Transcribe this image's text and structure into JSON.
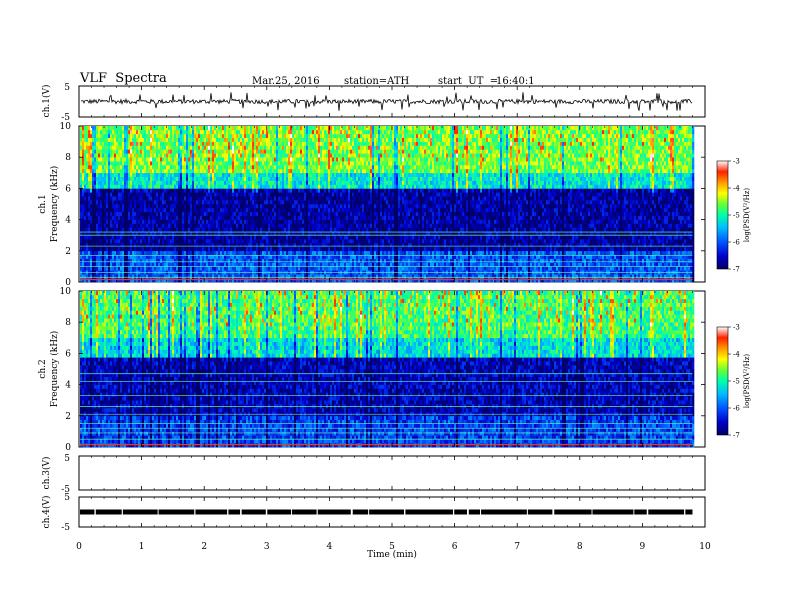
{
  "header": {
    "title": "VLF  Spectra",
    "date": "Mar.25, 2016",
    "station": "station=ATH",
    "start_label": "start  UT  =",
    "start_time": "16:40:1"
  },
  "colors": {
    "colormap": [
      "#000066",
      "#0000cc",
      "#0033ff",
      "#0099ff",
      "#00ffcc",
      "#66ff33",
      "#ffff00",
      "#ff9900",
      "#ff3300",
      "#e00000",
      "#ffffff"
    ],
    "trace": "#000000"
  },
  "chart_data": [
    {
      "id": "ch1-waveform",
      "type": "line",
      "ylabel": "ch.1(V)",
      "ylim": [
        -5,
        5
      ],
      "yticks": [
        "5",
        "-5"
      ],
      "xlim": [
        0,
        10
      ],
      "description_values": {
        "baseline": 0,
        "noise_amplitude": 0.7,
        "spike_max": 3
      }
    },
    {
      "id": "ch1-spectrogram",
      "type": "heatmap",
      "ylabel_top": "ch.1",
      "ylabel": "Frequency  (kHz)",
      "ylim": [
        0,
        10
      ],
      "yticks": [
        "0",
        "2",
        "4",
        "6",
        "8",
        "10"
      ],
      "xlim": [
        0,
        9.8
      ],
      "colorbar": {
        "label": "log(PSD(V²/Hz)",
        "range": [
          -7,
          -3
        ],
        "ticks": [
          "-3",
          "-4",
          "-5",
          "-6",
          "-7"
        ]
      },
      "bands_khz": [
        {
          "from": 0.0,
          "to": 2.0,
          "level": -6.0
        },
        {
          "from": 2.0,
          "to": 5.8,
          "level": -6.7
        },
        {
          "from": 5.8,
          "to": 7.0,
          "level": -5.2
        },
        {
          "from": 7.0,
          "to": 10.0,
          "level": -4.6
        }
      ],
      "line_freqs_khz": [
        0.3,
        0.6,
        1.0,
        1.3,
        1.7,
        2.3,
        3.0,
        3.2
      ]
    },
    {
      "id": "ch2-spectrogram",
      "type": "heatmap",
      "ylabel_top": "ch.2",
      "ylabel": "Frequency  (kHz)",
      "ylim": [
        0,
        10
      ],
      "yticks": [
        "0",
        "2",
        "4",
        "6",
        "8",
        "10"
      ],
      "xlim": [
        0,
        9.8
      ],
      "colorbar": {
        "label": "log(PSD(V²/Hz)",
        "range": [
          -7,
          -3
        ],
        "ticks": [
          "-3",
          "-4",
          "-5",
          "-6",
          "-7"
        ]
      },
      "bands_khz": [
        {
          "from": 0.0,
          "to": 2.0,
          "level": -6.1
        },
        {
          "from": 2.0,
          "to": 5.6,
          "level": -6.6
        },
        {
          "from": 5.6,
          "to": 7.0,
          "level": -5.3
        },
        {
          "from": 7.0,
          "to": 10.0,
          "level": -4.8
        }
      ],
      "line_freqs_khz": [
        0.5,
        0.9,
        1.2,
        1.5,
        2.1,
        2.6,
        3.3,
        4.2,
        4.7
      ]
    },
    {
      "id": "ch3-waveform",
      "type": "line",
      "ylabel": "ch.3(V)",
      "ylim": [
        -5,
        5
      ],
      "yticks": [
        "5",
        "-5"
      ],
      "xlim": [
        0,
        10
      ]
    },
    {
      "id": "ch4-waveform",
      "type": "line",
      "ylabel": "ch.4(V)",
      "ylim": [
        -5,
        5
      ],
      "yticks": [
        "5",
        "-5"
      ],
      "xlim": [
        0,
        10
      ],
      "description_values": {
        "baseline": 0
      }
    }
  ],
  "xaxis": {
    "label": "Time  (min)",
    "range": [
      0,
      10
    ],
    "ticks": [
      "0",
      "1",
      "2",
      "3",
      "4",
      "5",
      "6",
      "7",
      "8",
      "9",
      "10"
    ]
  }
}
